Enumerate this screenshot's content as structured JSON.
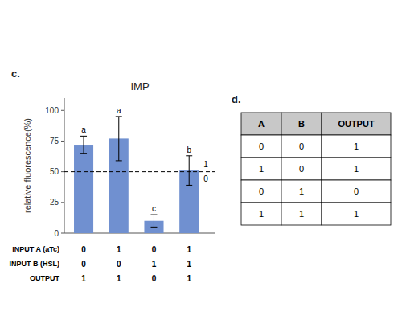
{
  "chart_data": [
    {
      "type": "bar",
      "title": "IMP",
      "panel_label": "c.",
      "ylabel": "relative fluorescence(%)",
      "categories": [
        null,
        null,
        null,
        null
      ],
      "values": [
        72,
        77,
        10,
        51
      ],
      "errors": [
        7,
        18,
        5,
        12
      ],
      "color": "#7090d0",
      "bar_labels": [
        "a",
        "a",
        "c",
        "b"
      ],
      "threshold": 50,
      "threshold_labels": [
        "1",
        "0"
      ],
      "x_rows": [
        {
          "label": "INPUT A (aTc)",
          "values": [
            "0",
            "1",
            "0",
            "1"
          ]
        },
        {
          "label": "INPUT B (HSL)",
          "values": [
            "0",
            "0",
            "1",
            "1"
          ]
        },
        {
          "label": "OUTPUT",
          "values": [
            "1",
            "1",
            "0",
            "1"
          ]
        }
      ],
      "ylim": [
        0,
        110
      ],
      "yticks": [
        0,
        25,
        50,
        75,
        100
      ],
      "grid": false
    },
    {
      "type": "table",
      "panel_label": "d.",
      "color": "#c8c8c8",
      "headers": [
        "A",
        "B",
        "OUTPUT"
      ],
      "rows": [
        [
          "0",
          "0",
          "1"
        ],
        [
          "1",
          "0",
          "1"
        ],
        [
          "0",
          "1",
          "0"
        ],
        [
          "1",
          "1",
          "1"
        ]
      ]
    }
  ]
}
